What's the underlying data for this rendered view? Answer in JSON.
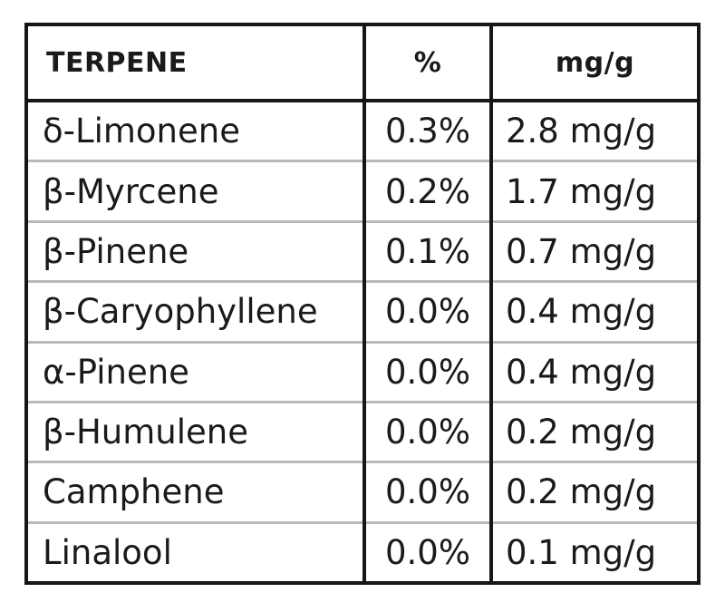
{
  "table": {
    "headers": {
      "terpene": "TERPENE",
      "percent": "%",
      "mgg": "mg/g"
    },
    "rows": [
      {
        "terpene": "δ-Limonene",
        "percent": "0.3%",
        "mgg": "2.8 mg/g"
      },
      {
        "terpene": "β-Myrcene",
        "percent": "0.2%",
        "mgg": "1.7 mg/g"
      },
      {
        "terpene": "β-Pinene",
        "percent": "0.1%",
        "mgg": "0.7 mg/g"
      },
      {
        "terpene": "β-Caryophyllene",
        "percent": "0.0%",
        "mgg": "0.4 mg/g"
      },
      {
        "terpene": "α-Pinene",
        "percent": "0.0%",
        "mgg": "0.4 mg/g"
      },
      {
        "terpene": "β-Humulene",
        "percent": "0.0%",
        "mgg": "0.2 mg/g"
      },
      {
        "terpene": "Camphene",
        "percent": "0.0%",
        "mgg": "0.2 mg/g"
      },
      {
        "terpene": "Linalool",
        "percent": "0.0%",
        "mgg": "0.1 mg/g"
      }
    ]
  }
}
